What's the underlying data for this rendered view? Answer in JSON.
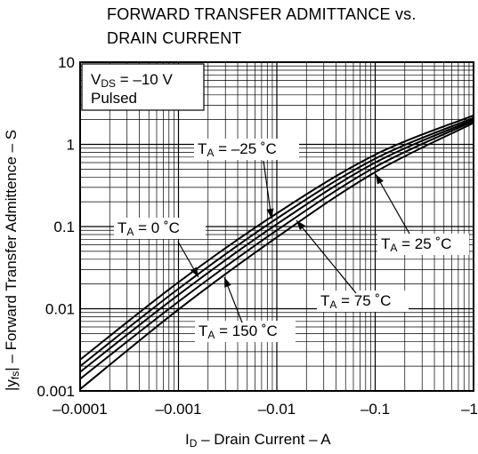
{
  "title_line1": "FORWARD TRANSFER ADMITTANCE vs.",
  "title_line2": "DRAIN CURRENT",
  "chart_data": {
    "type": "line",
    "xscale": "log",
    "yscale": "log",
    "xlim": [
      -0.0001,
      -1
    ],
    "ylim": [
      0.001,
      10
    ],
    "grid": true,
    "xlabel": {
      "main": "I",
      "sub": "D",
      "rest": " – Drain Current – A"
    },
    "ylabel": {
      "pre": "|y",
      "sub": "fs",
      "rest": "| – Forward Transfer Admittence – S"
    },
    "x_ticks": [
      {
        "value": -0.0001,
        "label": "–0.0001"
      },
      {
        "value": -0.001,
        "label": "–0.001"
      },
      {
        "value": -0.01,
        "label": "–0.01"
      },
      {
        "value": -0.1,
        "label": "–0.1"
      },
      {
        "value": -1,
        "label": "–1"
      }
    ],
    "y_ticks": [
      {
        "value": 0.001,
        "label": "0.001"
      },
      {
        "value": 0.01,
        "label": "0.01"
      },
      {
        "value": 0.1,
        "label": "0.1"
      },
      {
        "value": 1,
        "label": "1"
      },
      {
        "value": 10,
        "label": "10"
      }
    ],
    "conditions": {
      "line1": {
        "main": "V",
        "sub": "DS",
        "rest": " = –10 V"
      },
      "line2": "Pulsed"
    },
    "series": [
      {
        "name": "TA = –25 °C",
        "label": {
          "main": "T",
          "sub": "A",
          "rest": " = –25 ˚C"
        },
        "x": [
          -0.0001,
          -0.001,
          -0.01,
          -0.1,
          -1
        ],
        "y": [
          0.0024,
          0.021,
          0.145,
          0.75,
          2.25
        ]
      },
      {
        "name": "TA = 0 °C",
        "label": {
          "main": "T",
          "sub": "A",
          "rest": " = 0 ˚C"
        },
        "x": [
          -0.0001,
          -0.001,
          -0.01,
          -0.1,
          -1
        ],
        "y": [
          0.002,
          0.0175,
          0.125,
          0.67,
          2.1
        ]
      },
      {
        "name": "TA = 25 °C",
        "label": {
          "main": "T",
          "sub": "A",
          "rest": " = 25 ˚C"
        },
        "x": [
          -0.0001,
          -0.001,
          -0.01,
          -0.1,
          -1
        ],
        "y": [
          0.0017,
          0.0148,
          0.107,
          0.6,
          2.0
        ]
      },
      {
        "name": "TA = 75 °C",
        "label": {
          "main": "T",
          "sub": "A",
          "rest": " = 75 ˚C"
        },
        "x": [
          -0.0001,
          -0.001,
          -0.01,
          -0.1,
          -1
        ],
        "y": [
          0.0014,
          0.0122,
          0.09,
          0.53,
          1.92
        ]
      },
      {
        "name": "TA = 150 °C",
        "label": {
          "main": "T",
          "sub": "A",
          "rest": " = 150 ˚C"
        },
        "x": [
          -0.0001,
          -0.001,
          -0.01,
          -0.1,
          -1
        ],
        "y": [
          0.00105,
          0.0098,
          0.074,
          0.46,
          1.82
        ]
      }
    ]
  }
}
